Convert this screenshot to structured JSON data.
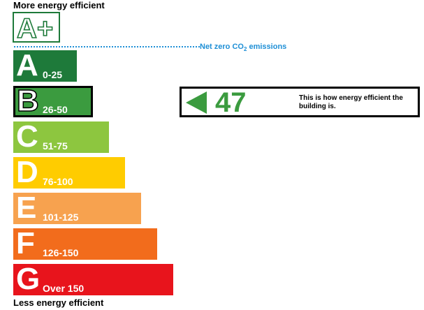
{
  "labels": {
    "top": "More energy efficient",
    "bottom": "Less energy efficient",
    "aplus": "A+",
    "netzero_prefix": "Net zero CO",
    "netzero_sub": "2",
    "netzero_suffix": " emissions"
  },
  "chart_data": {
    "type": "bar",
    "categories": [
      "A",
      "B",
      "C",
      "D",
      "E",
      "F",
      "G"
    ],
    "ranges": [
      "0-25",
      "26-50",
      "51-75",
      "76-100",
      "101-125",
      "126-150",
      "Over 150"
    ],
    "colors": [
      "#1e7a3a",
      "#3b9b3f",
      "#8dc63f",
      "#ffcc00",
      "#f7a24f",
      "#f26c1c",
      "#e8141c"
    ],
    "current_band": "B",
    "current_rating": 47,
    "rating_color": "#3b9b3f",
    "rating_text": "This is how energy efficient the building is."
  }
}
